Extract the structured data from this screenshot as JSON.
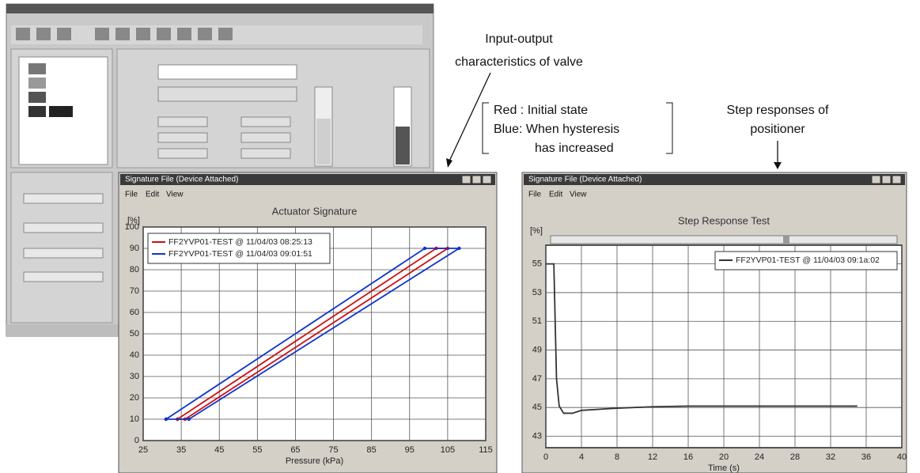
{
  "captions": {
    "valve": [
      "Input-output",
      "characteristics of valve"
    ],
    "legend_note": {
      "red": "Red : Initial state",
      "blue": [
        "Blue: When hysteresis",
        "has increased"
      ]
    },
    "step": [
      "Step responses of",
      "positioner"
    ]
  },
  "windows": [
    {
      "title": "Signature File (Device Attached)",
      "menu": [
        "File",
        "Edit",
        "View"
      ],
      "chart": {
        "type": "line",
        "title": "Actuator Signature",
        "y_unit": "[%]",
        "xlabel": "Pressure (kPa)",
        "xlim": [
          25,
          115
        ],
        "xticks": [
          25,
          35,
          45,
          55,
          65,
          75,
          85,
          95,
          105,
          115
        ],
        "ylim": [
          0,
          100
        ],
        "yticks": [
          0,
          10,
          20,
          30,
          40,
          50,
          60,
          70,
          80,
          90,
          100
        ],
        "grid": true,
        "legend": "top-left",
        "series": [
          {
            "name": "FF2YVP01-TEST @ 11/04/03 08:25:13",
            "color": "#cc1111",
            "x": [
              34,
              102,
              105,
              36,
              34
            ],
            "y": [
              10,
              90,
              90,
              10,
              10
            ]
          },
          {
            "name": "FF2YVP01-TEST @ 11/04/03 09:01:51",
            "color": "#1133cc",
            "x": [
              31,
              99,
              108,
              37,
              31
            ],
            "y": [
              10,
              90,
              90,
              10,
              10
            ]
          }
        ]
      }
    },
    {
      "title": "Signature File (Device Attached)",
      "menu": [
        "File",
        "Edit",
        "View"
      ],
      "chart": {
        "type": "line",
        "title": "Step Response Test",
        "y_unit": "[%]",
        "xlabel": "Time (s)",
        "xlim": [
          0,
          40
        ],
        "xticks": [
          0,
          4,
          8,
          12,
          16,
          20,
          24,
          28,
          32,
          36,
          40
        ],
        "ylim": [
          42.2,
          56.3
        ],
        "yticks": [
          43,
          45,
          47,
          49,
          51,
          53,
          55
        ],
        "grid": true,
        "legend": "top-right",
        "series": [
          {
            "name": "FF2YVP01-TEST @ 11/04/03 09:1a:02",
            "color": "#333333",
            "x": [
              0,
              0.9,
              1.2,
              1.5,
              2,
              3,
              4,
              8,
              12,
              16,
              24,
              35
            ],
            "y": [
              55,
              55,
              47,
              45.1,
              44.6,
              44.6,
              44.8,
              44.95,
              45.05,
              45.1,
              45.1,
              45.1
            ]
          }
        ]
      }
    }
  ]
}
